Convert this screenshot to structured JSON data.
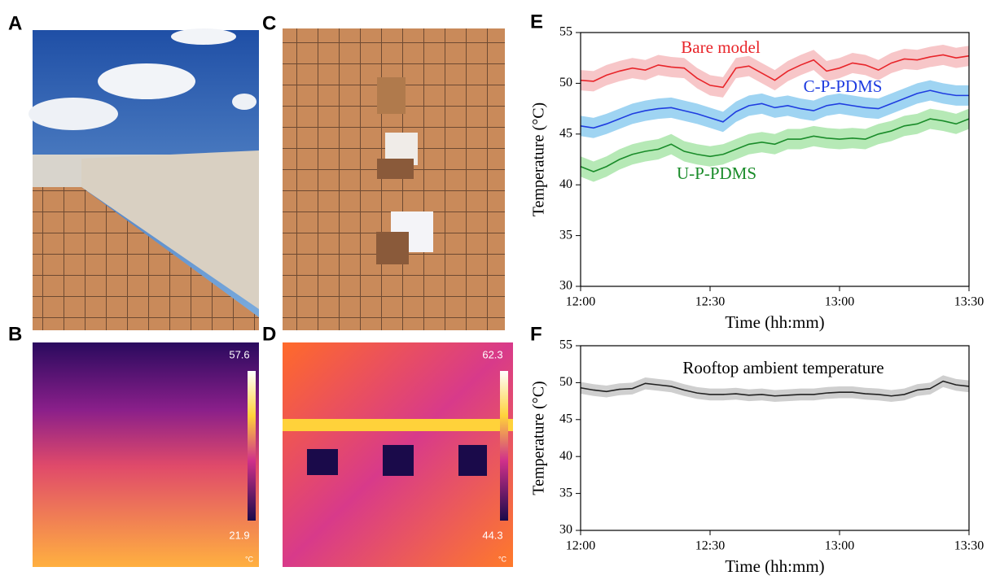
{
  "photos": [
    {
      "label": "A"
    },
    {
      "label": "B",
      "scale_max": "57.6",
      "scale_min": "21.9",
      "unit": "°C"
    },
    {
      "label": "C"
    },
    {
      "label": "D",
      "scale_max": "62.3",
      "scale_min": "44.3",
      "unit": "°C"
    }
  ],
  "chart_data": [
    {
      "label": "E",
      "type": "line",
      "xlabel": "Time (hh:mm)",
      "ylabel": "Temperature (°C)",
      "x": [
        "12:00",
        "12:03",
        "12:06",
        "12:09",
        "12:12",
        "12:15",
        "12:18",
        "12:21",
        "12:24",
        "12:27",
        "12:30",
        "12:33",
        "12:36",
        "12:39",
        "12:42",
        "12:45",
        "12:48",
        "12:51",
        "12:54",
        "12:57",
        "13:00",
        "13:03",
        "13:06",
        "13:09",
        "13:12",
        "13:15",
        "13:18",
        "13:21",
        "13:24",
        "13:27",
        "13:30"
      ],
      "xlim": [
        "12:00",
        "13:30"
      ],
      "xticks": [
        "12:00",
        "12:30",
        "13:00",
        "13:30"
      ],
      "ylim": [
        30,
        55
      ],
      "yticks": [
        30,
        35,
        40,
        45,
        50,
        55
      ],
      "series": [
        {
          "name": "Bare model",
          "color": "#e8252a",
          "band_color": "#f7c6c8",
          "error": 1,
          "values": [
            50.3,
            50.2,
            50.8,
            51.2,
            51.5,
            51.3,
            51.8,
            51.6,
            51.5,
            50.5,
            49.8,
            49.6,
            51.5,
            51.7,
            51.0,
            50.3,
            51.2,
            51.8,
            52.3,
            51.2,
            51.5,
            52.0,
            51.8,
            51.3,
            52.0,
            52.4,
            52.3,
            52.6,
            52.8,
            52.5,
            52.7
          ]
        },
        {
          "name": "C-P-PDMS",
          "color": "#1f3de0",
          "band_color": "#9fd4f2",
          "error": 1,
          "values": [
            45.8,
            45.6,
            46.0,
            46.5,
            47.0,
            47.3,
            47.5,
            47.6,
            47.3,
            47.0,
            46.6,
            46.2,
            47.2,
            47.8,
            48.0,
            47.6,
            47.8,
            47.5,
            47.3,
            47.8,
            48.0,
            47.8,
            47.6,
            47.5,
            48.0,
            48.5,
            49.0,
            49.3,
            49.0,
            48.8,
            48.8
          ]
        },
        {
          "name": "U-P-PDMS",
          "color": "#1a8c2a",
          "band_color": "#b6e9b6",
          "error": 1,
          "values": [
            41.8,
            41.3,
            41.8,
            42.5,
            43.0,
            43.3,
            43.5,
            44.0,
            43.3,
            43.0,
            42.8,
            43.0,
            43.5,
            44.0,
            44.2,
            44.0,
            44.5,
            44.5,
            44.8,
            44.6,
            44.5,
            44.6,
            44.5,
            45.0,
            45.3,
            45.8,
            46.0,
            46.5,
            46.3,
            46.0,
            46.5
          ]
        }
      ]
    },
    {
      "label": "F",
      "type": "line",
      "xlabel": "Time (hh:mm)",
      "ylabel": "Temperature (°C)",
      "x": [
        "12:00",
        "12:03",
        "12:06",
        "12:09",
        "12:12",
        "12:15",
        "12:18",
        "12:21",
        "12:24",
        "12:27",
        "12:30",
        "12:33",
        "12:36",
        "12:39",
        "12:42",
        "12:45",
        "12:48",
        "12:51",
        "12:54",
        "12:57",
        "13:00",
        "13:03",
        "13:06",
        "13:09",
        "13:12",
        "13:15",
        "13:18",
        "13:21",
        "13:24",
        "13:27",
        "13:30"
      ],
      "xlim": [
        "12:00",
        "13:30"
      ],
      "xticks": [
        "12:00",
        "12:30",
        "13:00",
        "13:30"
      ],
      "ylim": [
        30,
        55
      ],
      "yticks": [
        30,
        35,
        40,
        45,
        50,
        55
      ],
      "series": [
        {
          "name": "Rooftop ambient temperature",
          "color": "#222222",
          "band_color": "#cfcfcf",
          "error": 0.8,
          "values": [
            49.3,
            49.0,
            48.8,
            49.1,
            49.2,
            49.9,
            49.7,
            49.5,
            49.0,
            48.6,
            48.4,
            48.4,
            48.5,
            48.3,
            48.4,
            48.2,
            48.3,
            48.4,
            48.4,
            48.6,
            48.7,
            48.7,
            48.5,
            48.4,
            48.2,
            48.4,
            49.0,
            49.2,
            50.2,
            49.7,
            49.5
          ]
        }
      ]
    }
  ]
}
